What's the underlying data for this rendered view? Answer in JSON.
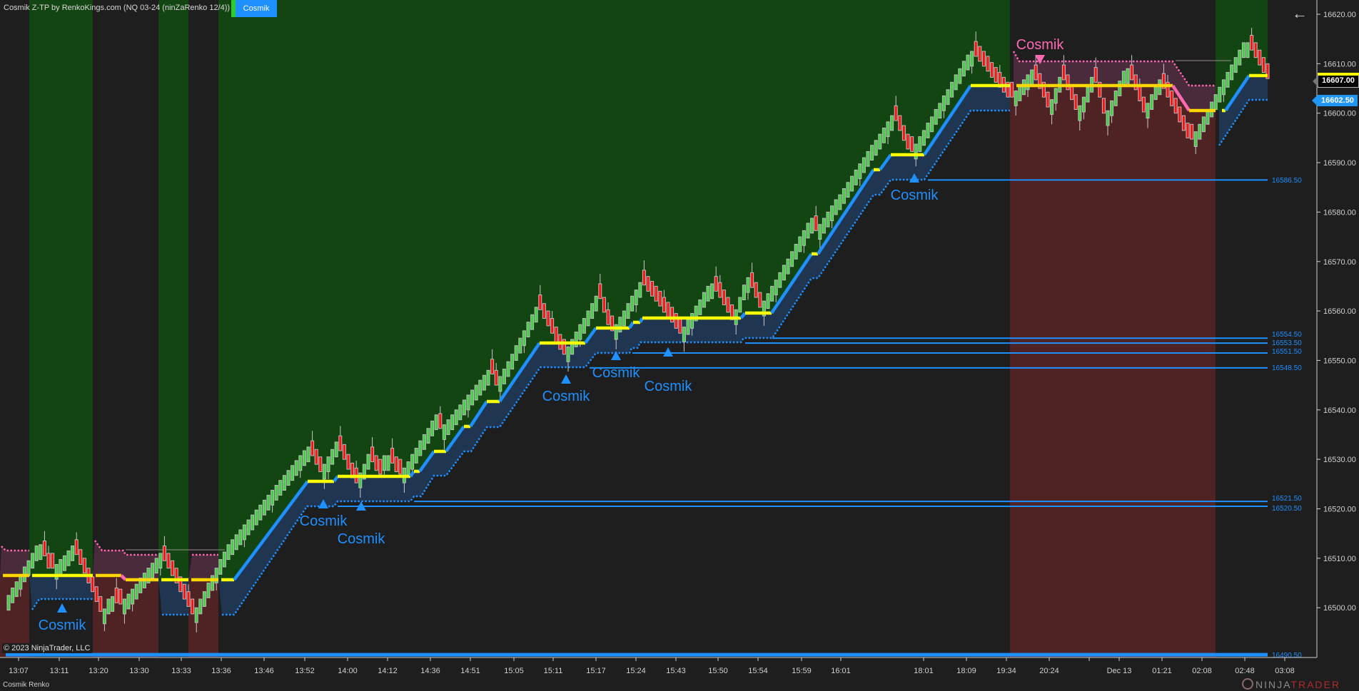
{
  "header": {
    "title": "Cosmik Z-TP by RenkoKings.com (NQ 03-24 (ninZaRenko 12/4))",
    "indicator_button": "Cosmik",
    "back_icon": "arrow-left-icon"
  },
  "price_axis": {
    "labels": [
      "16620.00",
      "16610.00",
      "16600.00",
      "16590.00",
      "16580.00",
      "16570.00",
      "16560.00",
      "16550.00",
      "16540.00",
      "16530.00",
      "16520.00",
      "16510.00",
      "16500.00"
    ],
    "last_price": "16607.00",
    "stop_price": "16602.50"
  },
  "time_axis": {
    "labels": [
      "13:07",
      "13:11",
      "13:20",
      "13:30",
      "13:33",
      "13:36",
      "13:46",
      "13:52",
      "14:00",
      "14:12",
      "14:36",
      "14:51",
      "15:05",
      "15:11",
      "15:17",
      "15:24",
      "15:43",
      "15:50",
      "15:54",
      "15:59",
      "16:01",
      "18:01",
      "18:09",
      "19:34",
      "20:24",
      "",
      "Dec 13",
      "01:21",
      "02:08",
      "02:48",
      "03:08"
    ]
  },
  "levels": [
    {
      "price": 16586.5,
      "label": "16586.50"
    },
    {
      "price": 16554.5,
      "label": "16554.50"
    },
    {
      "price": 16553.5,
      "label": "16553.50"
    },
    {
      "price": 16551.5,
      "label": "16551.50"
    },
    {
      "price": 16548.5,
      "label": "16548.50"
    },
    {
      "price": 16521.5,
      "label": "16521.50"
    },
    {
      "price": 16520.5,
      "label": "16520.50"
    },
    {
      "price": 16490.5,
      "label": "16490.50"
    }
  ],
  "signals": [
    {
      "text": "Cosmik",
      "direction": "long"
    },
    {
      "text": "Cosmik",
      "direction": "long"
    },
    {
      "text": "Cosmik",
      "direction": "long"
    },
    {
      "text": "Cosmik",
      "direction": "long"
    },
    {
      "text": "Cosmik",
      "direction": "long"
    },
    {
      "text": "Cosmik",
      "direction": "long"
    },
    {
      "text": "Cosmik",
      "direction": "long"
    },
    {
      "text": "Cosmik",
      "direction": "short"
    }
  ],
  "price_swings": [
    16502.5,
    16513.4,
    16507.3,
    16512.5,
    16498.6,
    16502.9,
    16500.3,
    16511,
    16498.6,
    16512.3,
    16532.7,
    16527.4,
    16533.6,
    16524.8,
    16531,
    16526.5,
    16531.9,
    16526.5,
    16539.2,
    16536,
    16548.5,
    16545,
    16561.3,
    16551,
    16563.7,
    16555.5,
    16566,
    16555.5,
    16566,
    16558.1,
    16567.2,
    16560.7,
    16579,
    16576,
    16599.8,
    16591.7,
    16612.8,
    16602.7,
    16608.9,
    16601,
    16608,
    16600.1,
    16608,
    16599.2,
    16609.8,
    16600.1,
    16607.2,
    16594,
    16615,
    16607
  ],
  "colors": {
    "background": "#1e1e1e",
    "bull_zone": "#134512",
    "bear_zone": "#4f2224",
    "bull_band": "#1f3550",
    "bear_band": "#4a2b3b",
    "trend_up": "#1e90ff",
    "trend_flat_bull": "#ffff00",
    "trend_flat_bear": "#ffd700",
    "trend_down": "#ff69b4",
    "up_bar": "#3fd13f",
    "down_bar": "#ff1010",
    "level_line": "#1e90ff"
  },
  "footer": {
    "copyright": "© 2023 NinjaTrader, LLC",
    "chart_name": "Cosmik Renko",
    "logo_left": "NINJA",
    "logo_right": "TRADER"
  }
}
